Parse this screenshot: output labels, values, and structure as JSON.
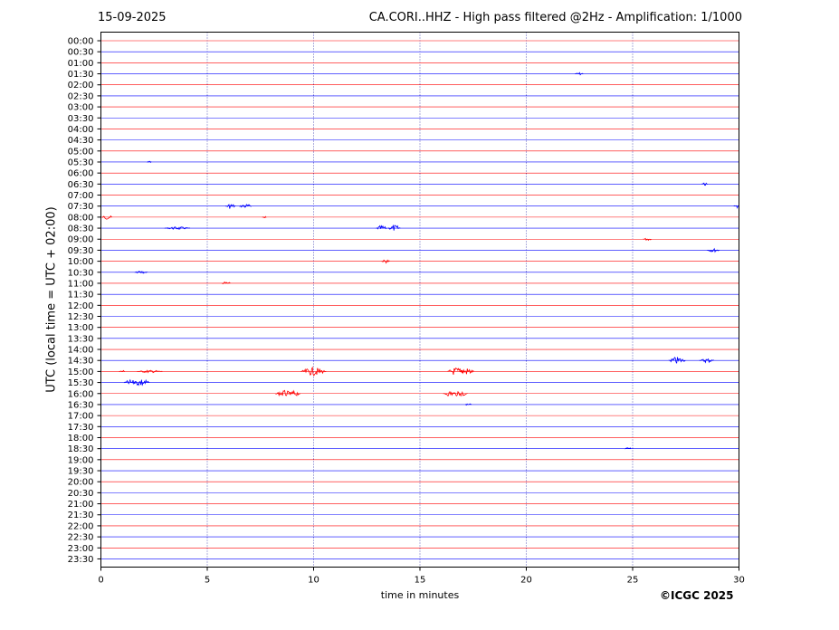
{
  "header": {
    "date": "15-09-2025",
    "title": "CA.CORI..HHZ - High pass filtered @2Hz - Amplification: 1/1000"
  },
  "footer": {
    "copyright": "©ICGC 2025"
  },
  "chart_data": {
    "type": "line",
    "title": "CA.CORI..HHZ - High pass filtered @2Hz - Amplification: 1/1000",
    "xlabel": "time in minutes",
    "ylabel": "UTC (local time = UTC + 02:00)",
    "xlim": [
      0,
      30
    ],
    "x_ticks": [
      0,
      5,
      10,
      15,
      20,
      25,
      30
    ],
    "grid": "vertical dotted lines at 5-minute ticks",
    "trace_colors": [
      "#ff0000",
      "#0000ff"
    ],
    "rows": [
      "00:00",
      "00:30",
      "01:00",
      "01:30",
      "02:00",
      "02:30",
      "03:00",
      "03:30",
      "04:00",
      "04:30",
      "05:00",
      "05:30",
      "06:00",
      "06:30",
      "07:00",
      "07:30",
      "08:00",
      "08:30",
      "09:00",
      "09:30",
      "10:00",
      "10:30",
      "11:00",
      "11:30",
      "12:00",
      "12:30",
      "13:00",
      "13:30",
      "14:00",
      "14:30",
      "15:00",
      "15:30",
      "16:00",
      "16:30",
      "17:00",
      "17:30",
      "18:00",
      "18:30",
      "19:00",
      "19:30",
      "20:00",
      "20:30",
      "21:00",
      "21:30",
      "22:00",
      "22:30",
      "23:00",
      "23:30"
    ],
    "events": [
      {
        "row": "01:30",
        "minute": 22.5,
        "amplitude": 0.3,
        "duration": 0.4
      },
      {
        "row": "05:30",
        "minute": 2.3,
        "amplitude": 0.3,
        "duration": 0.2
      },
      {
        "row": "06:30",
        "minute": 28.4,
        "amplitude": 0.3,
        "duration": 0.3
      },
      {
        "row": "07:30",
        "minute": 6.1,
        "amplitude": 0.6,
        "duration": 0.5
      },
      {
        "row": "07:30",
        "minute": 6.8,
        "amplitude": 0.5,
        "duration": 0.6
      },
      {
        "row": "07:30",
        "minute": 29.9,
        "amplitude": 0.6,
        "duration": 0.3
      },
      {
        "row": "08:00",
        "minute": 0.3,
        "amplitude": 0.5,
        "duration": 0.5
      },
      {
        "row": "08:00",
        "minute": 7.7,
        "amplitude": 0.3,
        "duration": 0.2
      },
      {
        "row": "08:30",
        "minute": 3.6,
        "amplitude": 0.3,
        "duration": 1.2
      },
      {
        "row": "08:30",
        "minute": 13.2,
        "amplitude": 0.6,
        "duration": 0.5
      },
      {
        "row": "08:30",
        "minute": 13.8,
        "amplitude": 0.7,
        "duration": 0.6
      },
      {
        "row": "09:00",
        "minute": 25.7,
        "amplitude": 0.3,
        "duration": 0.4
      },
      {
        "row": "09:30",
        "minute": 28.8,
        "amplitude": 0.4,
        "duration": 0.6
      },
      {
        "row": "10:00",
        "minute": 13.4,
        "amplitude": 0.4,
        "duration": 0.4
      },
      {
        "row": "10:30",
        "minute": 1.9,
        "amplitude": 0.3,
        "duration": 0.6
      },
      {
        "row": "11:00",
        "minute": 5.9,
        "amplitude": 0.4,
        "duration": 0.4
      },
      {
        "row": "14:30",
        "minute": 27.1,
        "amplitude": 0.8,
        "duration": 0.8
      },
      {
        "row": "14:30",
        "minute": 28.5,
        "amplitude": 0.5,
        "duration": 0.7
      },
      {
        "row": "15:00",
        "minute": 1.0,
        "amplitude": 0.3,
        "duration": 0.3
      },
      {
        "row": "15:00",
        "minute": 2.3,
        "amplitude": 0.3,
        "duration": 1.2
      },
      {
        "row": "15:00",
        "minute": 10.0,
        "amplitude": 0.9,
        "duration": 1.2
      },
      {
        "row": "15:00",
        "minute": 16.7,
        "amplitude": 0.9,
        "duration": 0.8
      },
      {
        "row": "15:00",
        "minute": 17.2,
        "amplitude": 0.8,
        "duration": 0.7
      },
      {
        "row": "15:30",
        "minute": 1.4,
        "amplitude": 0.6,
        "duration": 0.6
      },
      {
        "row": "15:30",
        "minute": 1.9,
        "amplitude": 0.9,
        "duration": 0.8
      },
      {
        "row": "16:00",
        "minute": 8.6,
        "amplitude": 0.7,
        "duration": 0.8
      },
      {
        "row": "16:00",
        "minute": 9.1,
        "amplitude": 0.6,
        "duration": 0.6
      },
      {
        "row": "16:00",
        "minute": 16.4,
        "amplitude": 0.6,
        "duration": 0.6
      },
      {
        "row": "16:00",
        "minute": 16.9,
        "amplitude": 0.8,
        "duration": 0.7
      },
      {
        "row": "16:30",
        "minute": 17.3,
        "amplitude": 0.3,
        "duration": 0.3
      },
      {
        "row": "18:30",
        "minute": 24.8,
        "amplitude": 0.3,
        "duration": 0.3
      }
    ]
  }
}
